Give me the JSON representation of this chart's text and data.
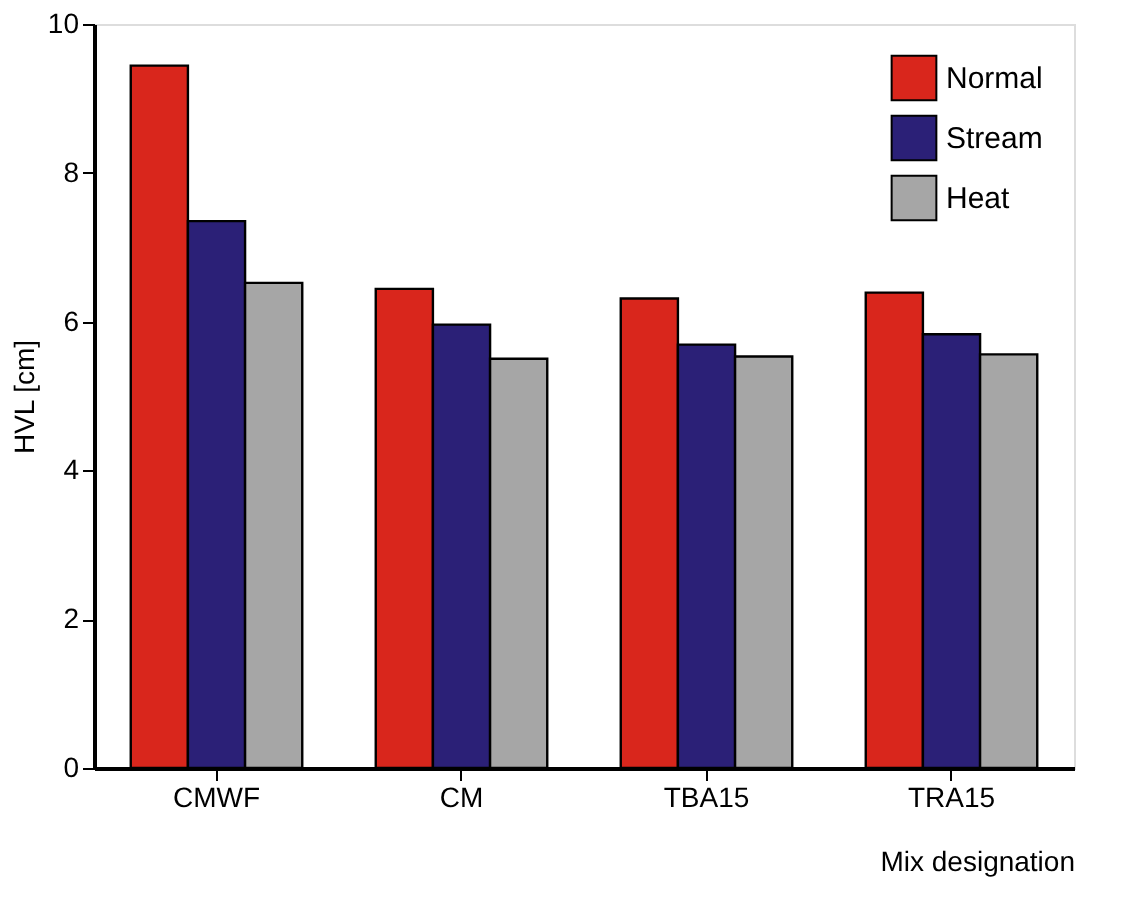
{
  "chart_data": {
    "type": "bar",
    "categories": [
      "CMWF",
      "CM",
      "TBA15",
      "TRA15"
    ],
    "series": [
      {
        "name": "Normal",
        "color": "#d9261c",
        "values": [
          9.44,
          6.44,
          6.31,
          6.39
        ]
      },
      {
        "name": "Stream",
        "color": "#2b2077",
        "values": [
          7.35,
          5.96,
          5.69,
          5.83
        ]
      },
      {
        "name": "Heat",
        "color": "#a6a6a6",
        "values": [
          6.52,
          5.5,
          5.53,
          5.56
        ]
      }
    ],
    "xlabel": "Mix designation",
    "ylabel": "HVL [cm]",
    "ylim": [
      0,
      10
    ],
    "yticks": [
      0,
      2,
      4,
      6,
      8,
      10
    ],
    "grid": false,
    "legend": "top right"
  }
}
